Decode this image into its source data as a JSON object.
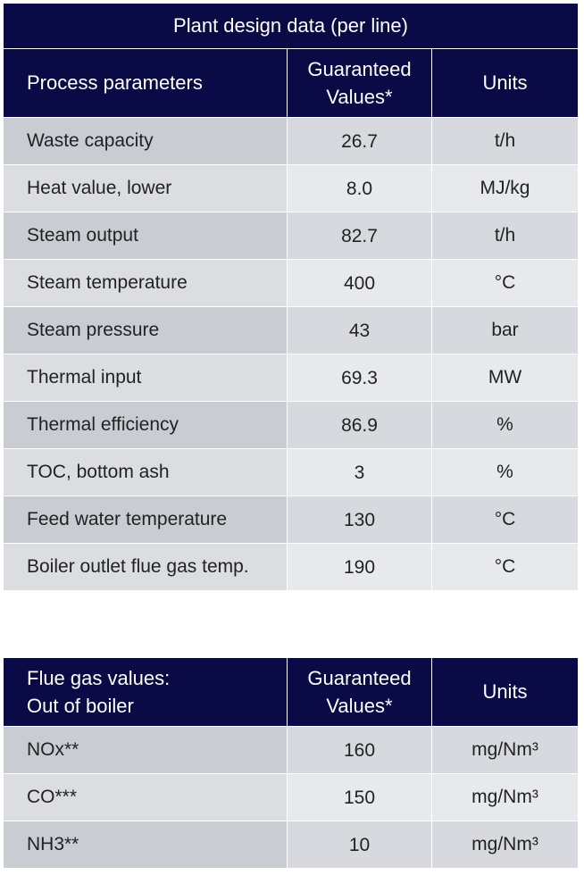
{
  "table1": {
    "title": "Plant design data (per line)",
    "headers": [
      "Process parameters",
      "Guaranteed Values*",
      "Units"
    ],
    "rows": [
      {
        "param": "Waste capacity",
        "value": "26.7",
        "unit": "t/h"
      },
      {
        "param": "Heat value, lower",
        "value": "8.0",
        "unit": "MJ/kg"
      },
      {
        "param": "Steam output",
        "value": "82.7",
        "unit": "t/h"
      },
      {
        "param": "Steam temperature",
        "value": "400",
        "unit": "°C"
      },
      {
        "param": "Steam pressure",
        "value": "43",
        "unit": "bar"
      },
      {
        "param": "Thermal input",
        "value": "69.3",
        "unit": "MW"
      },
      {
        "param": "Thermal efficiency",
        "value": "86.9",
        "unit": "%"
      },
      {
        "param": "TOC, bottom ash",
        "value": "3",
        "unit": "%"
      },
      {
        "param": "Feed water temperature",
        "value": "130",
        "unit": "°C"
      },
      {
        "param": "Boiler outlet flue gas temp.",
        "value": "190",
        "unit": "°C"
      }
    ]
  },
  "table2": {
    "headers": {
      "col1_line1": "Flue gas values:",
      "col1_line2": "Out of boiler",
      "col2": "Guaranteed Values*",
      "col3": "Units"
    },
    "rows": [
      {
        "param": "NOx**",
        "value": "160",
        "unit": "mg/Nm³"
      },
      {
        "param": "CO***",
        "value": "150",
        "unit": "mg/Nm³"
      },
      {
        "param": "NH3**",
        "value": "10",
        "unit": "mg/Nm³"
      }
    ]
  }
}
